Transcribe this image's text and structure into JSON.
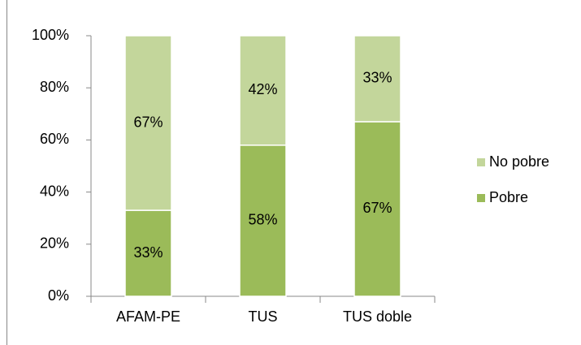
{
  "chart_data": {
    "type": "stacked_bar",
    "categories": [
      "AFAM-PE",
      "TUS",
      "TUS doble"
    ],
    "series": [
      {
        "name": "Pobre",
        "color": "#9bbb59",
        "values": [
          33,
          58,
          67
        ],
        "value_labels": [
          "33%",
          "58%",
          "67%"
        ]
      },
      {
        "name": "No pobre",
        "color": "#c3d69b",
        "values": [
          67,
          42,
          33
        ],
        "value_labels": [
          "67%",
          "42%",
          "33%"
        ]
      }
    ],
    "ylim": [
      0,
      100
    ],
    "yticks": [
      {
        "value": 0,
        "label": "0%"
      },
      {
        "value": 20,
        "label": "20%"
      },
      {
        "value": 40,
        "label": "40%"
      },
      {
        "value": 60,
        "label": "60%"
      },
      {
        "value": 80,
        "label": "80%"
      },
      {
        "value": 100,
        "label": "100%"
      }
    ],
    "grid": false,
    "legend": "right"
  }
}
